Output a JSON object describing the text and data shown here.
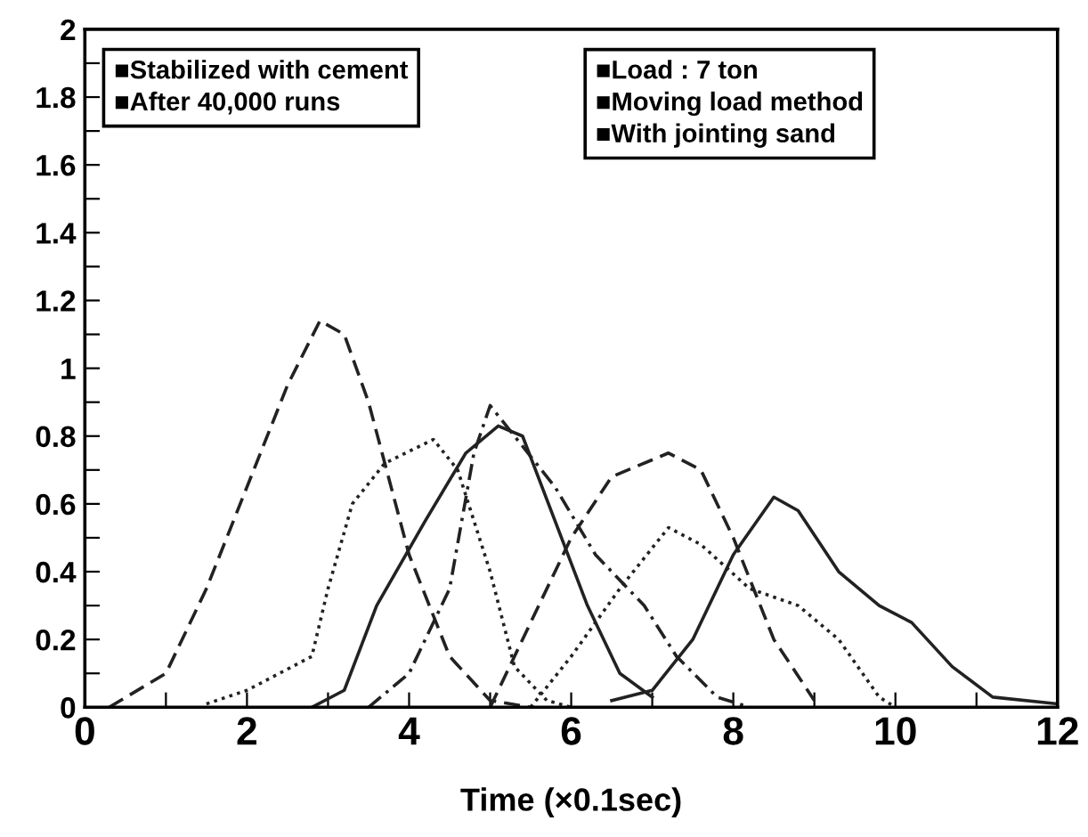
{
  "chart_data": {
    "type": "line",
    "xlabel": "Time (×0.1sec)",
    "annotations": [
      "■Stabilized with cement",
      "■After 40,000 runs",
      "■Load : 7 ton",
      "■Moving load method",
      "■With jointing sand"
    ],
    "xlim": [
      0,
      12
    ],
    "ylim": [
      0,
      2
    ],
    "xticks": [
      0,
      {
        "value": 1,
        "label": null
      },
      2,
      {
        "value": 3,
        "label": null
      },
      4,
      {
        "value": 5,
        "label": null
      },
      6,
      {
        "value": 7,
        "label": null
      },
      8,
      {
        "value": 9,
        "label": null
      },
      10,
      {
        "value": 11,
        "label": null
      },
      12
    ],
    "yticks": [
      0,
      {
        "value": 0.1,
        "label": null
      },
      0.2,
      {
        "value": 0.3,
        "label": null
      },
      0.4,
      {
        "value": 0.5,
        "label": null
      },
      0.6,
      {
        "value": 0.7,
        "label": null
      },
      0.8,
      {
        "value": 0.9,
        "label": null
      },
      1,
      {
        "value": 1.1,
        "label": null
      },
      1.2,
      {
        "value": 1.3,
        "label": null
      },
      1.4,
      {
        "value": 1.5,
        "label": null
      },
      1.6,
      {
        "value": 1.7,
        "label": null
      },
      1.8,
      {
        "value": 1.9,
        "label": null
      },
      2
    ],
    "grid": false,
    "legend": false,
    "marker": "none",
    "series": [
      {
        "color": "#222222",
        "line_style": "dashed",
        "x": [
          0.3,
          1.0,
          1.5,
          2.0,
          2.5,
          2.9,
          3.2,
          3.5,
          4.0,
          4.5,
          5.0,
          5.5
        ],
        "values": [
          0.0,
          0.1,
          0.35,
          0.65,
          0.95,
          1.14,
          1.1,
          0.9,
          0.45,
          0.15,
          0.02,
          0.0
        ]
      },
      {
        "color": "#222222",
        "line_style": "dotted",
        "x": [
          1.5,
          2.0,
          2.8,
          3.0,
          3.3,
          3.7,
          4.3,
          4.6,
          5.0,
          5.3,
          5.7,
          6.0
        ],
        "values": [
          0.01,
          0.05,
          0.15,
          0.35,
          0.6,
          0.72,
          0.79,
          0.7,
          0.4,
          0.12,
          0.02,
          0.0
        ]
      },
      {
        "color": "#222222",
        "line_style": "solid",
        "x": [
          2.8,
          3.2,
          3.6,
          4.2,
          4.7,
          5.1,
          5.4,
          5.8,
          6.2,
          6.6,
          7.0
        ],
        "values": [
          0.0,
          0.05,
          0.3,
          0.55,
          0.75,
          0.83,
          0.8,
          0.55,
          0.3,
          0.1,
          0.03
        ]
      },
      {
        "color": "#222222",
        "line_style": "dashdot",
        "x": [
          3.5,
          4.0,
          4.5,
          4.8,
          5.0,
          5.3,
          5.8,
          6.3,
          6.9,
          7.3,
          7.8,
          8.2
        ],
        "values": [
          0.0,
          0.1,
          0.35,
          0.75,
          0.89,
          0.8,
          0.65,
          0.45,
          0.3,
          0.15,
          0.03,
          0.0
        ]
      },
      {
        "color": "#222222",
        "line_style": "dashed",
        "x": [
          5.0,
          5.5,
          6.0,
          6.5,
          7.2,
          7.6,
          8.0,
          8.5,
          9.0
        ],
        "values": [
          0.0,
          0.25,
          0.5,
          0.68,
          0.75,
          0.7,
          0.5,
          0.2,
          0.02
        ]
      },
      {
        "color": "#222222",
        "line_style": "dotted",
        "x": [
          5.5,
          6.0,
          6.6,
          7.2,
          7.6,
          8.2,
          8.8,
          9.3,
          9.8,
          10.0
        ],
        "values": [
          0.0,
          0.15,
          0.35,
          0.53,
          0.48,
          0.35,
          0.3,
          0.2,
          0.03,
          0.0
        ]
      },
      {
        "color": "#222222",
        "line_style": "solid",
        "x": [
          6.5,
          7.0,
          7.5,
          8.0,
          8.5,
          8.8,
          9.3,
          9.8,
          10.2,
          10.7,
          11.2,
          12.0
        ],
        "values": [
          0.02,
          0.05,
          0.2,
          0.45,
          0.62,
          0.58,
          0.4,
          0.3,
          0.25,
          0.12,
          0.03,
          0.01
        ]
      }
    ]
  }
}
